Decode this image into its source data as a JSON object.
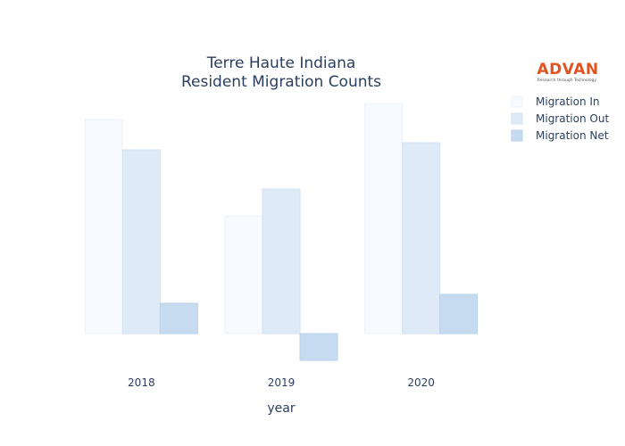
{
  "chart_data": {
    "type": "bar",
    "title": [
      "Terre Haute Indiana",
      "Resident Migration Counts"
    ],
    "xlabel": "year",
    "ylabel": "",
    "categories": [
      "2018",
      "2019",
      "2020"
    ],
    "series": [
      {
        "name": "Migration In",
        "values": [
          1200,
          660,
          1290
        ]
      },
      {
        "name": "Migration Out",
        "values": [
          1030,
          810,
          1070
        ]
      },
      {
        "name": "Migration Net",
        "values": [
          170,
          -150,
          220
        ]
      }
    ],
    "ylim": [
      -200,
      1350
    ],
    "grid": false,
    "legend": "top-right",
    "colors": {
      "series_fill": [
        "#f7faff",
        "#deebf7",
        "#c6dbef"
      ],
      "series_stroke": [
        "#ebf2fb",
        "#d2e2f3",
        "#b9d0ea"
      ],
      "text": "#2a3f5f"
    }
  },
  "logo": {
    "word": "ADVAN",
    "tagline": "Research through Technology",
    "color": "#e2531f"
  }
}
